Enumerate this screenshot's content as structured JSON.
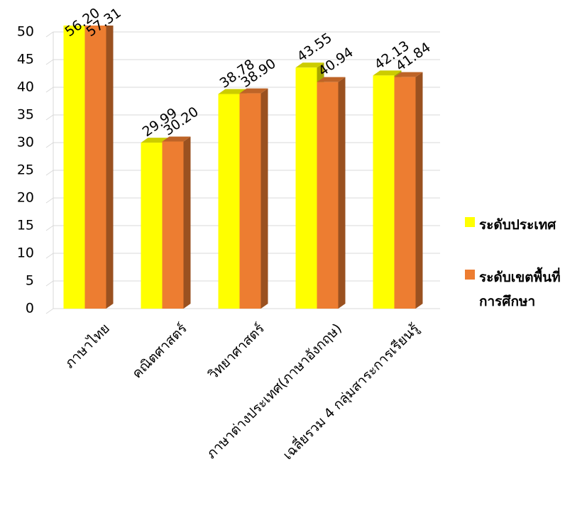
{
  "chart_data": {
    "type": "bar3d",
    "categories": [
      "ภาษาไทย",
      "คณิตศาสตร์",
      "วิทยาศาสตร์",
      "ภาษาต่างประเทศ(ภาษาอังกฤษ)",
      "เฉลี่ยรวม 4 กลุ่มสาระการเรียนรู้"
    ],
    "series": [
      {
        "name": "ระดับประเทศ",
        "color": "#ffff00",
        "values": [
          56.2,
          29.99,
          38.78,
          43.55,
          42.13
        ],
        "value_labels": [
          "56.20",
          "29.99",
          "38.78",
          "43.55",
          "42.13"
        ]
      },
      {
        "name": "ระดับเขตพื้นที่การศึกษา",
        "color": "#ed7d31",
        "values": [
          57.31,
          30.2,
          38.9,
          40.94,
          41.84
        ],
        "value_labels": [
          "57.31",
          "30.20",
          "38.90",
          "40.94",
          "41.84"
        ]
      }
    ],
    "ylim": [
      0,
      50
    ],
    "yticks": [
      0,
      5,
      10,
      15,
      20,
      25,
      30,
      35,
      40,
      45,
      50
    ],
    "grid": true,
    "legend": "right"
  }
}
